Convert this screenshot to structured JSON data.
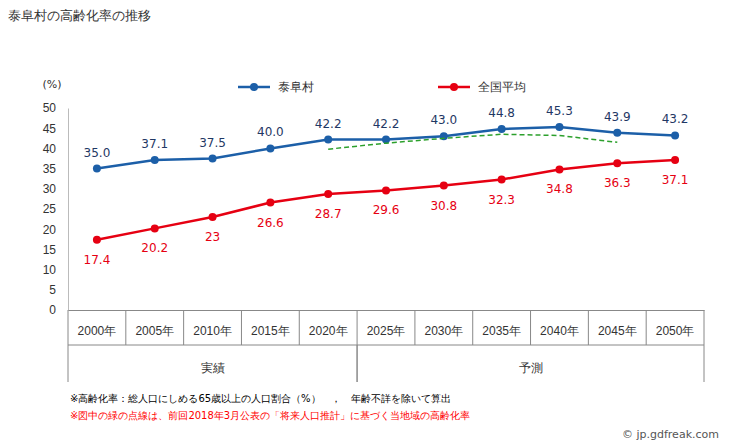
{
  "chart_data": {
    "type": "line",
    "title": "泰阜村の高齢化率の推移",
    "y_label": "(%)",
    "categories": [
      "2000年",
      "2005年",
      "2010年",
      "2015年",
      "2020年",
      "2025年",
      "2030年",
      "2035年",
      "2040年",
      "2045年",
      "2050年"
    ],
    "groups": [
      {
        "label": "実績",
        "from": "2000年",
        "to": "2020年"
      },
      {
        "label": "予測",
        "from": "2025年",
        "to": "2050年"
      }
    ],
    "series": [
      {
        "name": "泰阜村",
        "color": "#1c5fa8",
        "marker": "circle",
        "line_style": "solid",
        "data_labels": true,
        "values": [
          35.0,
          37.1,
          37.5,
          40.0,
          42.2,
          42.2,
          43.0,
          44.8,
          45.3,
          43.9,
          43.2
        ],
        "value_labels": [
          "35.0",
          "37.1",
          "37.5",
          "40.0",
          "42.2",
          "42.2",
          "43.0",
          "44.8",
          "45.3",
          "43.9",
          "43.2"
        ]
      },
      {
        "name": "全国平均",
        "color": "#e60012",
        "marker": "circle",
        "line_style": "solid",
        "data_labels": true,
        "values": [
          17.4,
          20.2,
          23.0,
          26.6,
          28.7,
          29.6,
          30.8,
          32.3,
          34.8,
          36.3,
          37.1
        ]
      },
      {
        "color": "#2ca02c",
        "marker": "none",
        "line_style": "dashed",
        "data_labels": false,
        "values": [
          null,
          null,
          null,
          null,
          39.8,
          41.3,
          42.5,
          43.5,
          43.2,
          41.5,
          null
        ]
      }
    ],
    "ylim": [
      0,
      50
    ],
    "yticks": [
      0,
      5,
      10,
      15,
      20,
      25,
      30,
      35,
      40,
      45,
      50
    ],
    "grid": false,
    "legend": "top",
    "notes": [
      {
        "text": "※高齢化率：総人口にしめる65歳以上の人口割合（%）　，　年齢不詳を除いて算出",
        "color": "#000000"
      },
      {
        "text": "※図中の緑の点線は、前回2018年3月公表の「将来人口推計」に基づく当地域の高齢化率",
        "color": "#ff0000"
      }
    ],
    "source": "© jp.gdfreak.com"
  }
}
